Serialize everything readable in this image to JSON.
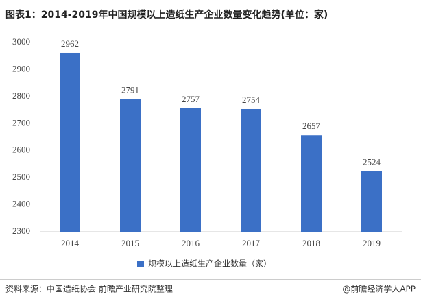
{
  "chart_data": {
    "type": "bar",
    "title": "图表1：2014-2019年中国规模以上造纸生产企业数量变化趋势(单位：家)",
    "categories": [
      "2014",
      "2015",
      "2016",
      "2017",
      "2018",
      "2019"
    ],
    "series": [
      {
        "name": "规模以上造纸生产企业数量（家）",
        "color": "#3b70c6",
        "values": [
          2962,
          2791,
          2757,
          2754,
          2657,
          2524
        ]
      }
    ],
    "ylim": [
      2300,
      3000
    ],
    "yticks": [
      2300,
      2400,
      2500,
      2600,
      2700,
      2800,
      2900,
      3000
    ],
    "grid": false,
    "legend": "bottom",
    "source": "资料来源：中国造纸协会 前瞻产业研究院整理",
    "credit": "@前瞻经济学人APP"
  }
}
